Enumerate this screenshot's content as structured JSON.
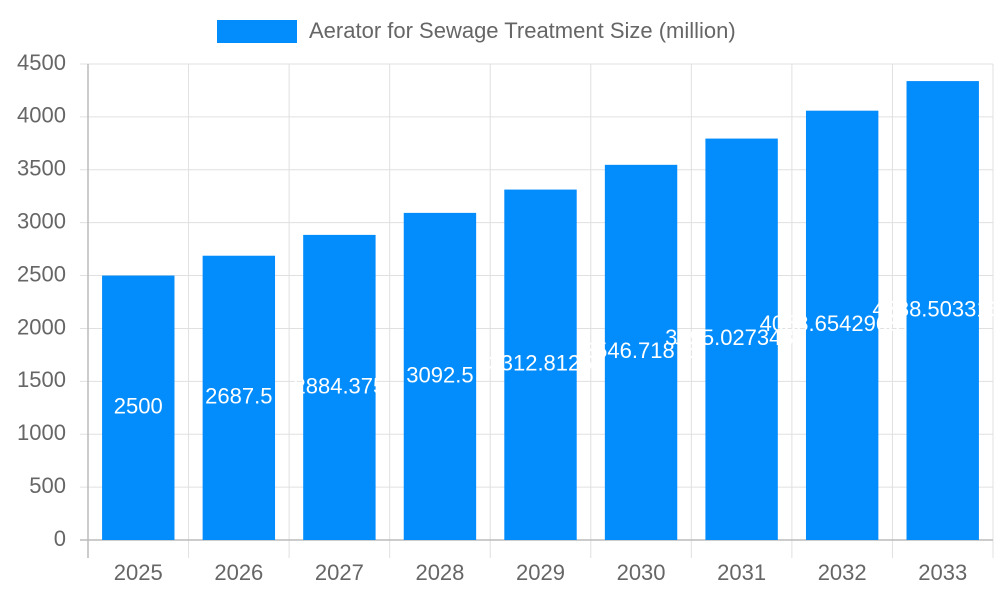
{
  "chart_data": {
    "type": "bar",
    "categories": [
      "2025",
      "2026",
      "2027",
      "2028",
      "2029",
      "2030",
      "2031",
      "2032",
      "2033"
    ],
    "series": [
      {
        "name": "Aerator for Sewage Treatment Size (million)",
        "color": "#038cfc",
        "values": [
          2500,
          2687.5,
          2884.375,
          3092.5,
          3312.8125,
          3546.71875,
          3795.02734375,
          4058.654296875,
          4338.5033164
        ]
      }
    ],
    "ylim": [
      0,
      4500
    ],
    "yticks": [
      0,
      500,
      1000,
      1500,
      2000,
      2500,
      3000,
      3500,
      4000,
      4500
    ],
    "grid": true,
    "legend": "top",
    "data_labels": true
  }
}
